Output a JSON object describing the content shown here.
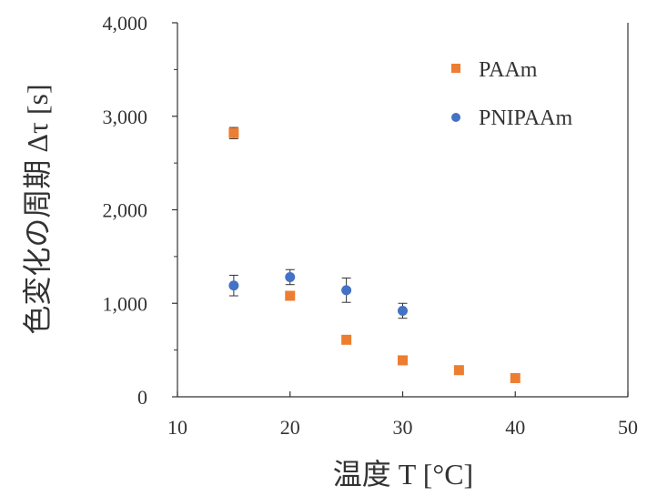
{
  "chart_data": {
    "type": "scatter",
    "xlabel": "温度 T [°C]",
    "ylabel": "色変化の周期 Δτ [s]",
    "xlim": [
      10,
      50
    ],
    "ylim": [
      0,
      4000
    ],
    "x_ticks": [
      "10",
      "20",
      "30",
      "40",
      "50"
    ],
    "y_ticks": [
      "0",
      "1,000",
      "2,000",
      "3,000",
      "4,000"
    ],
    "grid": false,
    "legend_position": "top-right",
    "series": [
      {
        "name": "PAAm",
        "marker": "square",
        "color": "#ED7D31",
        "points": [
          {
            "x": 15,
            "y": 2820,
            "err": 60
          },
          {
            "x": 20,
            "y": 1080,
            "err": 30
          },
          {
            "x": 25,
            "y": 610,
            "err": 30
          },
          {
            "x": 30,
            "y": 390,
            "err": 30
          },
          {
            "x": 35,
            "y": 285,
            "err": 20
          },
          {
            "x": 40,
            "y": 200,
            "err": 20
          }
        ]
      },
      {
        "name": "PNIPAAm",
        "marker": "circle",
        "color": "#4472C4",
        "points": [
          {
            "x": 15,
            "y": 1190,
            "err": 110
          },
          {
            "x": 20,
            "y": 1280,
            "err": 80
          },
          {
            "x": 25,
            "y": 1140,
            "err": 130
          },
          {
            "x": 30,
            "y": 920,
            "err": 80
          }
        ]
      }
    ]
  }
}
